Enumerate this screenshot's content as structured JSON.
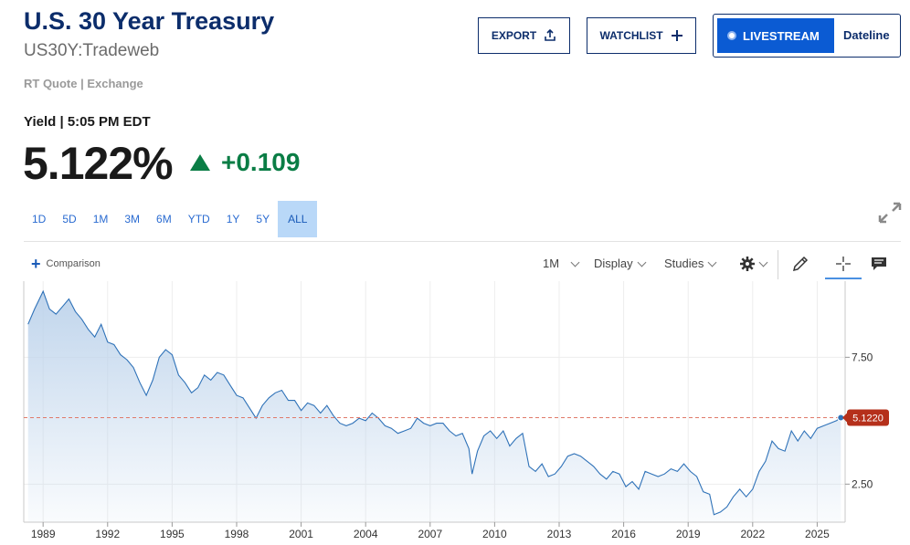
{
  "header": {
    "title": "U.S. 30 Year Treasury",
    "symbol": "US30Y:Tradeweb",
    "quote_source": "RT Quote | Exchange",
    "yield_time": "Yield | 5:05 PM EDT",
    "price": "5.122%",
    "change": "+0.109",
    "change_color": "#0a7d45"
  },
  "buttons": {
    "export": "EXPORT",
    "watchlist": "WATCHLIST",
    "livestream": "LIVESTREAM",
    "dateline": "Dateline"
  },
  "ranges": [
    "1D",
    "5D",
    "1M",
    "3M",
    "6M",
    "YTD",
    "1Y",
    "5Y",
    "ALL"
  ],
  "active_range": "ALL",
  "toolbar": {
    "comparison": "Comparison",
    "interval": "1M",
    "display": "Display",
    "studies": "Studies",
    "icons": [
      "gear-icon",
      "pencil-icon",
      "crosshair-icon",
      "comment-icon"
    ]
  },
  "chart_data": {
    "type": "area",
    "series": [
      {
        "x": [
          1988.3,
          1988.6,
          1989.0,
          1989.3,
          1989.6,
          1989.9,
          1990.2,
          1990.5,
          1990.8,
          1991.1,
          1991.4,
          1991.7,
          1992.0,
          1992.3,
          1992.6,
          1992.9,
          1993.2,
          1993.5,
          1993.8,
          1994.1,
          1994.4,
          1994.7,
          1995.0,
          1995.3,
          1995.6,
          1995.9,
          1996.2,
          1996.5,
          1996.8,
          1997.1,
          1997.4,
          1997.7,
          1998.0,
          1998.3,
          1998.6,
          1998.9,
          1999.2,
          1999.5,
          1999.8,
          2000.1,
          2000.4,
          2000.7,
          2001.0,
          2001.3,
          2001.6,
          2001.9,
          2002.2,
          2002.5,
          2002.8,
          2003.1,
          2003.4,
          2003.7,
          2004.0,
          2004.3,
          2004.6,
          2004.9,
          2005.2,
          2005.5,
          2005.8,
          2006.1,
          2006.4,
          2006.7,
          2007.0,
          2007.3,
          2007.6,
          2007.9,
          2008.2,
          2008.5,
          2008.8,
          2008.95,
          2009.2,
          2009.5,
          2009.8,
          2010.1,
          2010.4,
          2010.7,
          2011.0,
          2011.3,
          2011.6,
          2011.9,
          2012.2,
          2012.5,
          2012.8,
          2013.1,
          2013.4,
          2013.7,
          2014.0,
          2014.3,
          2014.6,
          2014.9,
          2015.2,
          2015.5,
          2015.8,
          2016.1,
          2016.4,
          2016.7,
          2017.0,
          2017.3,
          2017.6,
          2017.9,
          2018.2,
          2018.5,
          2018.8,
          2019.1,
          2019.4,
          2019.7,
          2020.0,
          2020.2,
          2020.5,
          2020.8,
          2021.1,
          2021.4,
          2021.7,
          2022.0,
          2022.3,
          2022.6,
          2022.9,
          2023.2,
          2023.5,
          2023.8,
          2024.1,
          2024.4,
          2024.7,
          2025.0,
          2025.3,
          2025.6,
          2025.9,
          2026.1
        ],
        "y": [
          8.8,
          9.4,
          10.1,
          9.4,
          9.2,
          9.5,
          9.8,
          9.3,
          9.0,
          8.6,
          8.3,
          8.8,
          8.1,
          8.0,
          7.6,
          7.4,
          7.1,
          6.5,
          6.0,
          6.6,
          7.5,
          7.8,
          7.6,
          6.8,
          6.5,
          6.1,
          6.3,
          6.8,
          6.6,
          6.9,
          6.8,
          6.4,
          6.0,
          5.9,
          5.5,
          5.1,
          5.6,
          5.9,
          6.1,
          6.2,
          5.8,
          5.8,
          5.4,
          5.7,
          5.6,
          5.3,
          5.6,
          5.2,
          4.9,
          4.8,
          4.9,
          5.1,
          5.0,
          5.3,
          5.1,
          4.8,
          4.7,
          4.5,
          4.6,
          4.7,
          5.1,
          4.9,
          4.8,
          4.9,
          4.9,
          4.6,
          4.4,
          4.5,
          3.9,
          2.9,
          3.8,
          4.4,
          4.6,
          4.3,
          4.6,
          4.0,
          4.3,
          4.5,
          3.2,
          3.0,
          3.3,
          2.8,
          2.9,
          3.2,
          3.6,
          3.7,
          3.6,
          3.4,
          3.2,
          2.9,
          2.7,
          3.0,
          2.9,
          2.4,
          2.6,
          2.3,
          3.0,
          2.9,
          2.8,
          2.9,
          3.1,
          3.0,
          3.3,
          3.0,
          2.8,
          2.2,
          2.1,
          1.3,
          1.4,
          1.6,
          2.0,
          2.3,
          2.0,
          2.3,
          3.0,
          3.4,
          4.2,
          3.9,
          3.8,
          4.6,
          4.2,
          4.6,
          4.3,
          4.7,
          4.8,
          4.9,
          5.0,
          5.12
        ]
      }
    ],
    "last_value": "5.1220",
    "y_ticks": [
      "7.50",
      "2.50"
    ],
    "x_ticks": [
      "1989",
      "1992",
      "1995",
      "1998",
      "2001",
      "2004",
      "2007",
      "2010",
      "2013",
      "2016",
      "2019",
      "2022",
      "2025"
    ],
    "ylim": [
      1.0,
      10.5
    ],
    "xlim": [
      1988.1,
      2026.3
    ],
    "grid": true,
    "line_color": "#2f72b8",
    "fill_color": "#bdd3eb",
    "reference_line_color": "#e07a6a",
    "label_color": "#b5301b"
  }
}
